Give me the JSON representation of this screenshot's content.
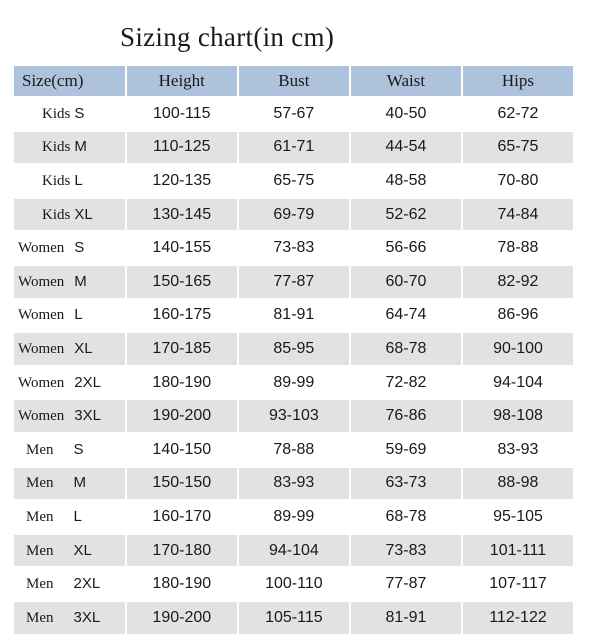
{
  "title": "Sizing chart(in cm)",
  "headers": [
    "Size(cm)",
    "Height",
    "Bust",
    "Waist",
    "Hips"
  ],
  "rows": [
    {
      "group": "Kids",
      "size": "S",
      "height": "100-115",
      "bust": "57-67",
      "waist": "40-50",
      "hips": "62-72"
    },
    {
      "group": "Kids",
      "size": "M",
      "height": "110-125",
      "bust": "61-71",
      "waist": "44-54",
      "hips": "65-75"
    },
    {
      "group": "Kids",
      "size": "L",
      "height": "120-135",
      "bust": "65-75",
      "waist": "48-58",
      "hips": "70-80"
    },
    {
      "group": "Kids",
      "size": "XL",
      "height": "130-145",
      "bust": "69-79",
      "waist": "52-62",
      "hips": "74-84"
    },
    {
      "group": "Women",
      "size": "S",
      "height": "140-155",
      "bust": "73-83",
      "waist": "56-66",
      "hips": "78-88"
    },
    {
      "group": "Women",
      "size": "M",
      "height": "150-165",
      "bust": "77-87",
      "waist": "60-70",
      "hips": "82-92"
    },
    {
      "group": "Women",
      "size": "L",
      "height": "160-175",
      "bust": "81-91",
      "waist": "64-74",
      "hips": "86-96"
    },
    {
      "group": "Women",
      "size": "XL",
      "height": "170-185",
      "bust": "85-95",
      "waist": "68-78",
      "hips": "90-100"
    },
    {
      "group": "Women",
      "size": "2XL",
      "height": "180-190",
      "bust": "89-99",
      "waist": "72-82",
      "hips": "94-104"
    },
    {
      "group": "Women",
      "size": "3XL",
      "height": "190-200",
      "bust": "93-103",
      "waist": "76-86",
      "hips": "98-108"
    },
    {
      "group": "Men",
      "size": "S",
      "height": "140-150",
      "bust": "78-88",
      "waist": "59-69",
      "hips": "83-93"
    },
    {
      "group": "Men",
      "size": "M",
      "height": "150-150",
      "bust": "83-93",
      "waist": "63-73",
      "hips": "88-98"
    },
    {
      "group": "Men",
      "size": "L",
      "height": "160-170",
      "bust": "89-99",
      "waist": "68-78",
      "hips": "95-105"
    },
    {
      "group": "Men",
      "size": "XL",
      "height": "170-180",
      "bust": "94-104",
      "waist": "73-83",
      "hips": "101-111"
    },
    {
      "group": "Men",
      "size": "2XL",
      "height": "180-190",
      "bust": "100-110",
      "waist": "77-87",
      "hips": "107-117"
    },
    {
      "group": "Men",
      "size": "3XL",
      "height": "190-200",
      "bust": "105-115",
      "waist": "81-91",
      "hips": "112-122"
    }
  ],
  "colors": {
    "header_bg": "#aec3db",
    "stripe_bg": "#e2e2e2",
    "row_bg": "#ffffff"
  }
}
